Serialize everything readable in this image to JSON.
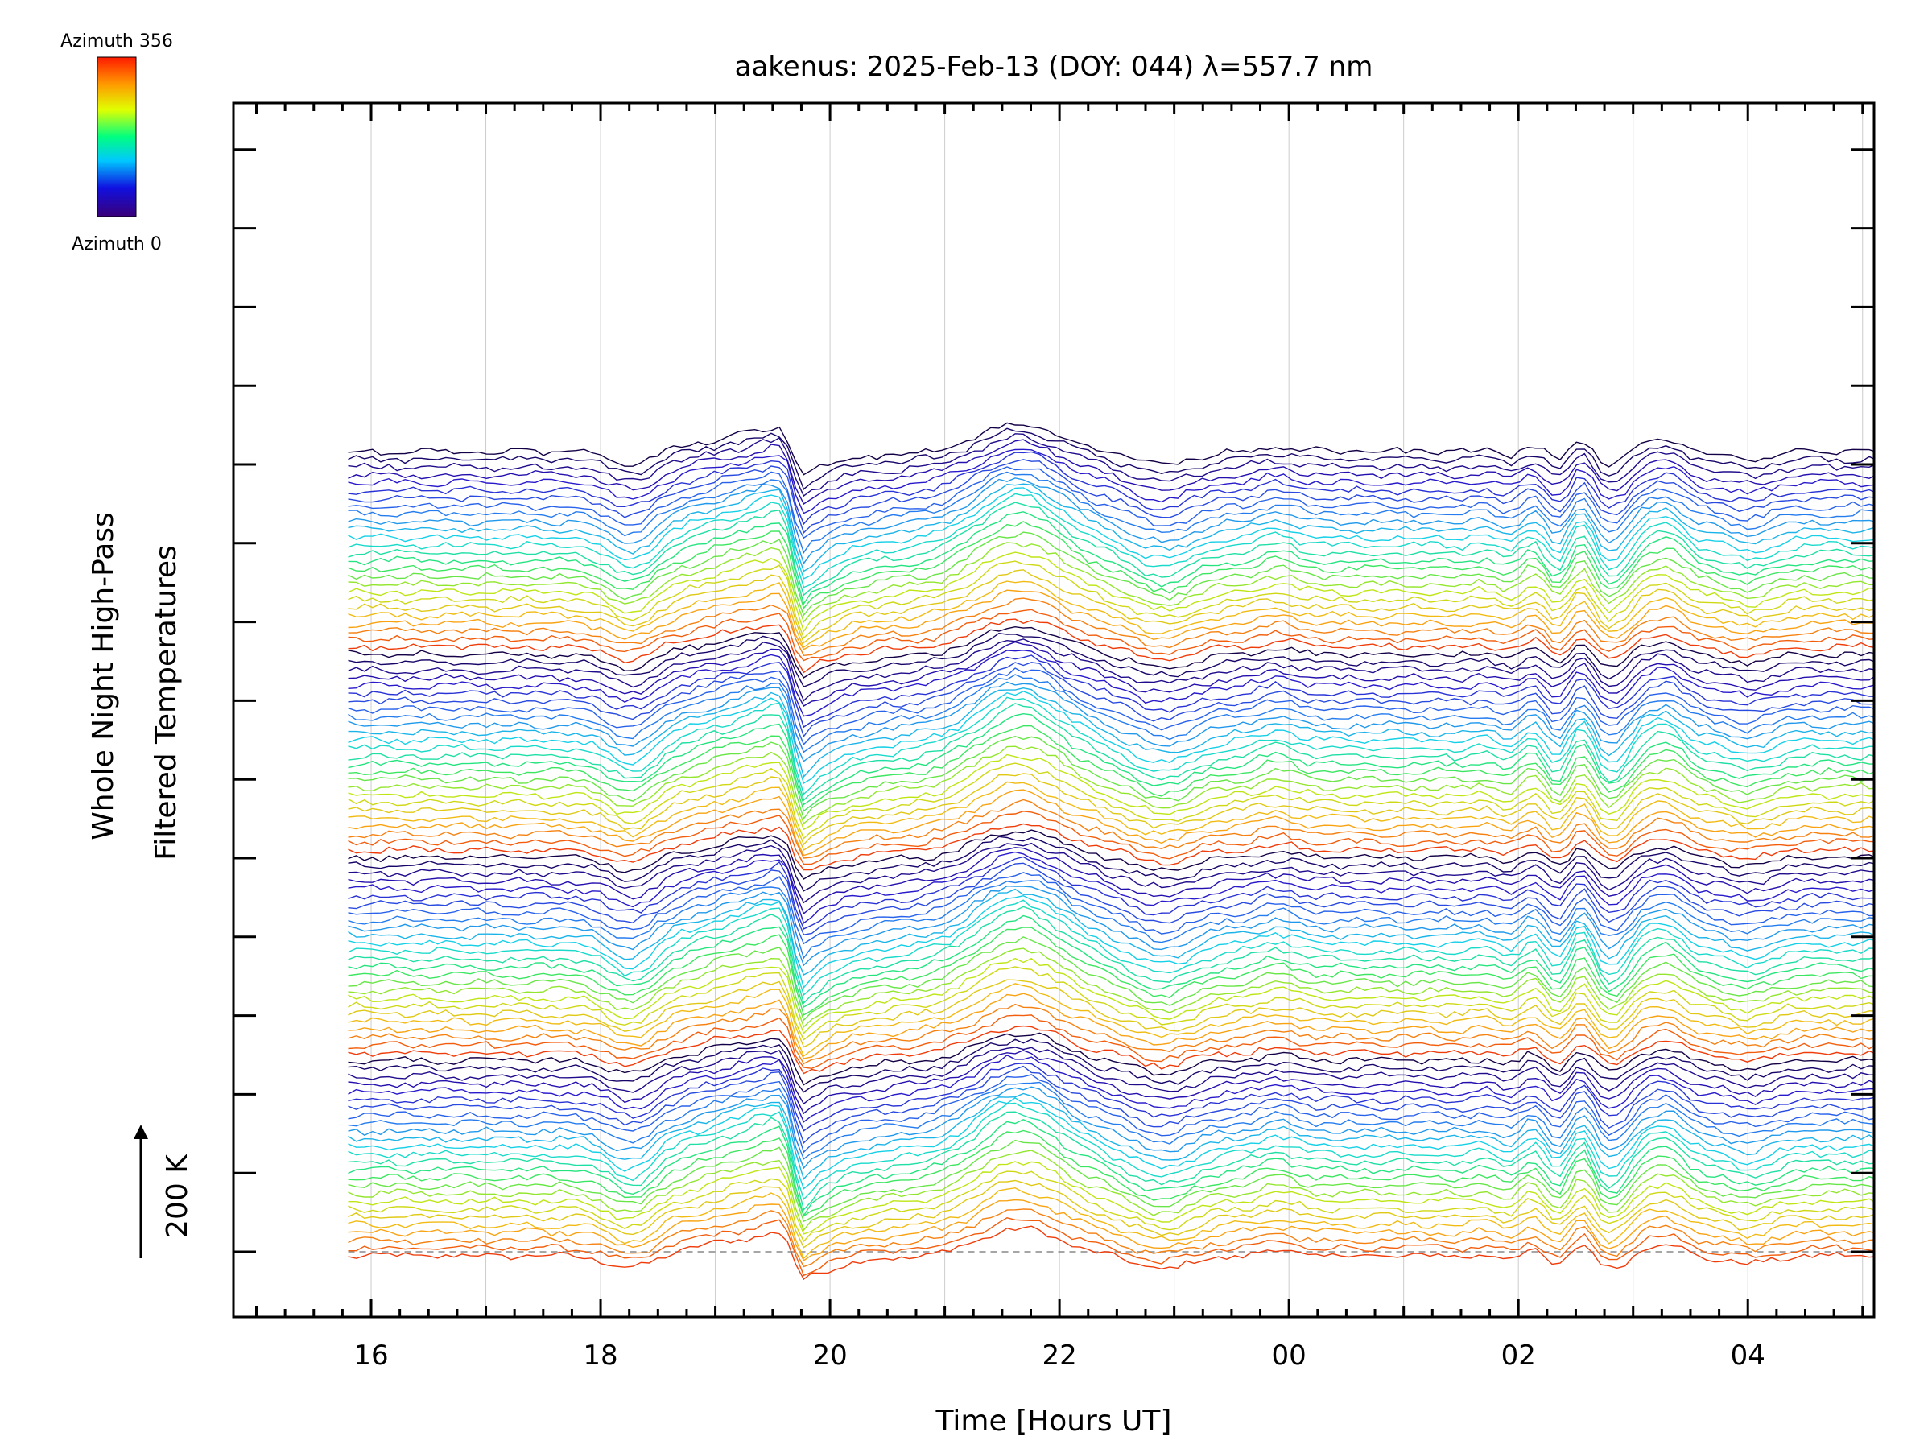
{
  "chart_data": {
    "type": "line",
    "title": "aakenus: 2025-Feb-13 (DOY: 044) λ=557.7 nm",
    "xlabel": "Time [Hours UT]",
    "ylabel_line1": "Whole Night High-Pass",
    "ylabel_line2": "Filtered Temperatures",
    "scale_label": "200 K",
    "x_ticks": [
      "16",
      "18",
      "20",
      "22",
      "00",
      "02",
      "04"
    ],
    "xlim_hours_since_16UT": [
      -1.2,
      13.1
    ],
    "data_range_hours": [
      -0.2,
      13.2
    ],
    "grid": true,
    "series_count": 104,
    "colorbar": {
      "top_label": "Azimuth 356",
      "bottom_label": "Azimuth 0",
      "colormap": "rainbow (violet to red)"
    },
    "feature_times_hours_since_16UT": {
      "dip_near_18_3": 2.25,
      "rise_to_spike": 3.45,
      "sharp_drop": 3.65,
      "hump_21_5": 5.65,
      "dip_22_8": 6.9,
      "oscillation_02_03": [
        10.0,
        10.45,
        10.65,
        10.95,
        11.2
      ]
    },
    "colors": {
      "axis": "#000000",
      "grid": "#cccccc",
      "baseline": "#888888"
    }
  }
}
